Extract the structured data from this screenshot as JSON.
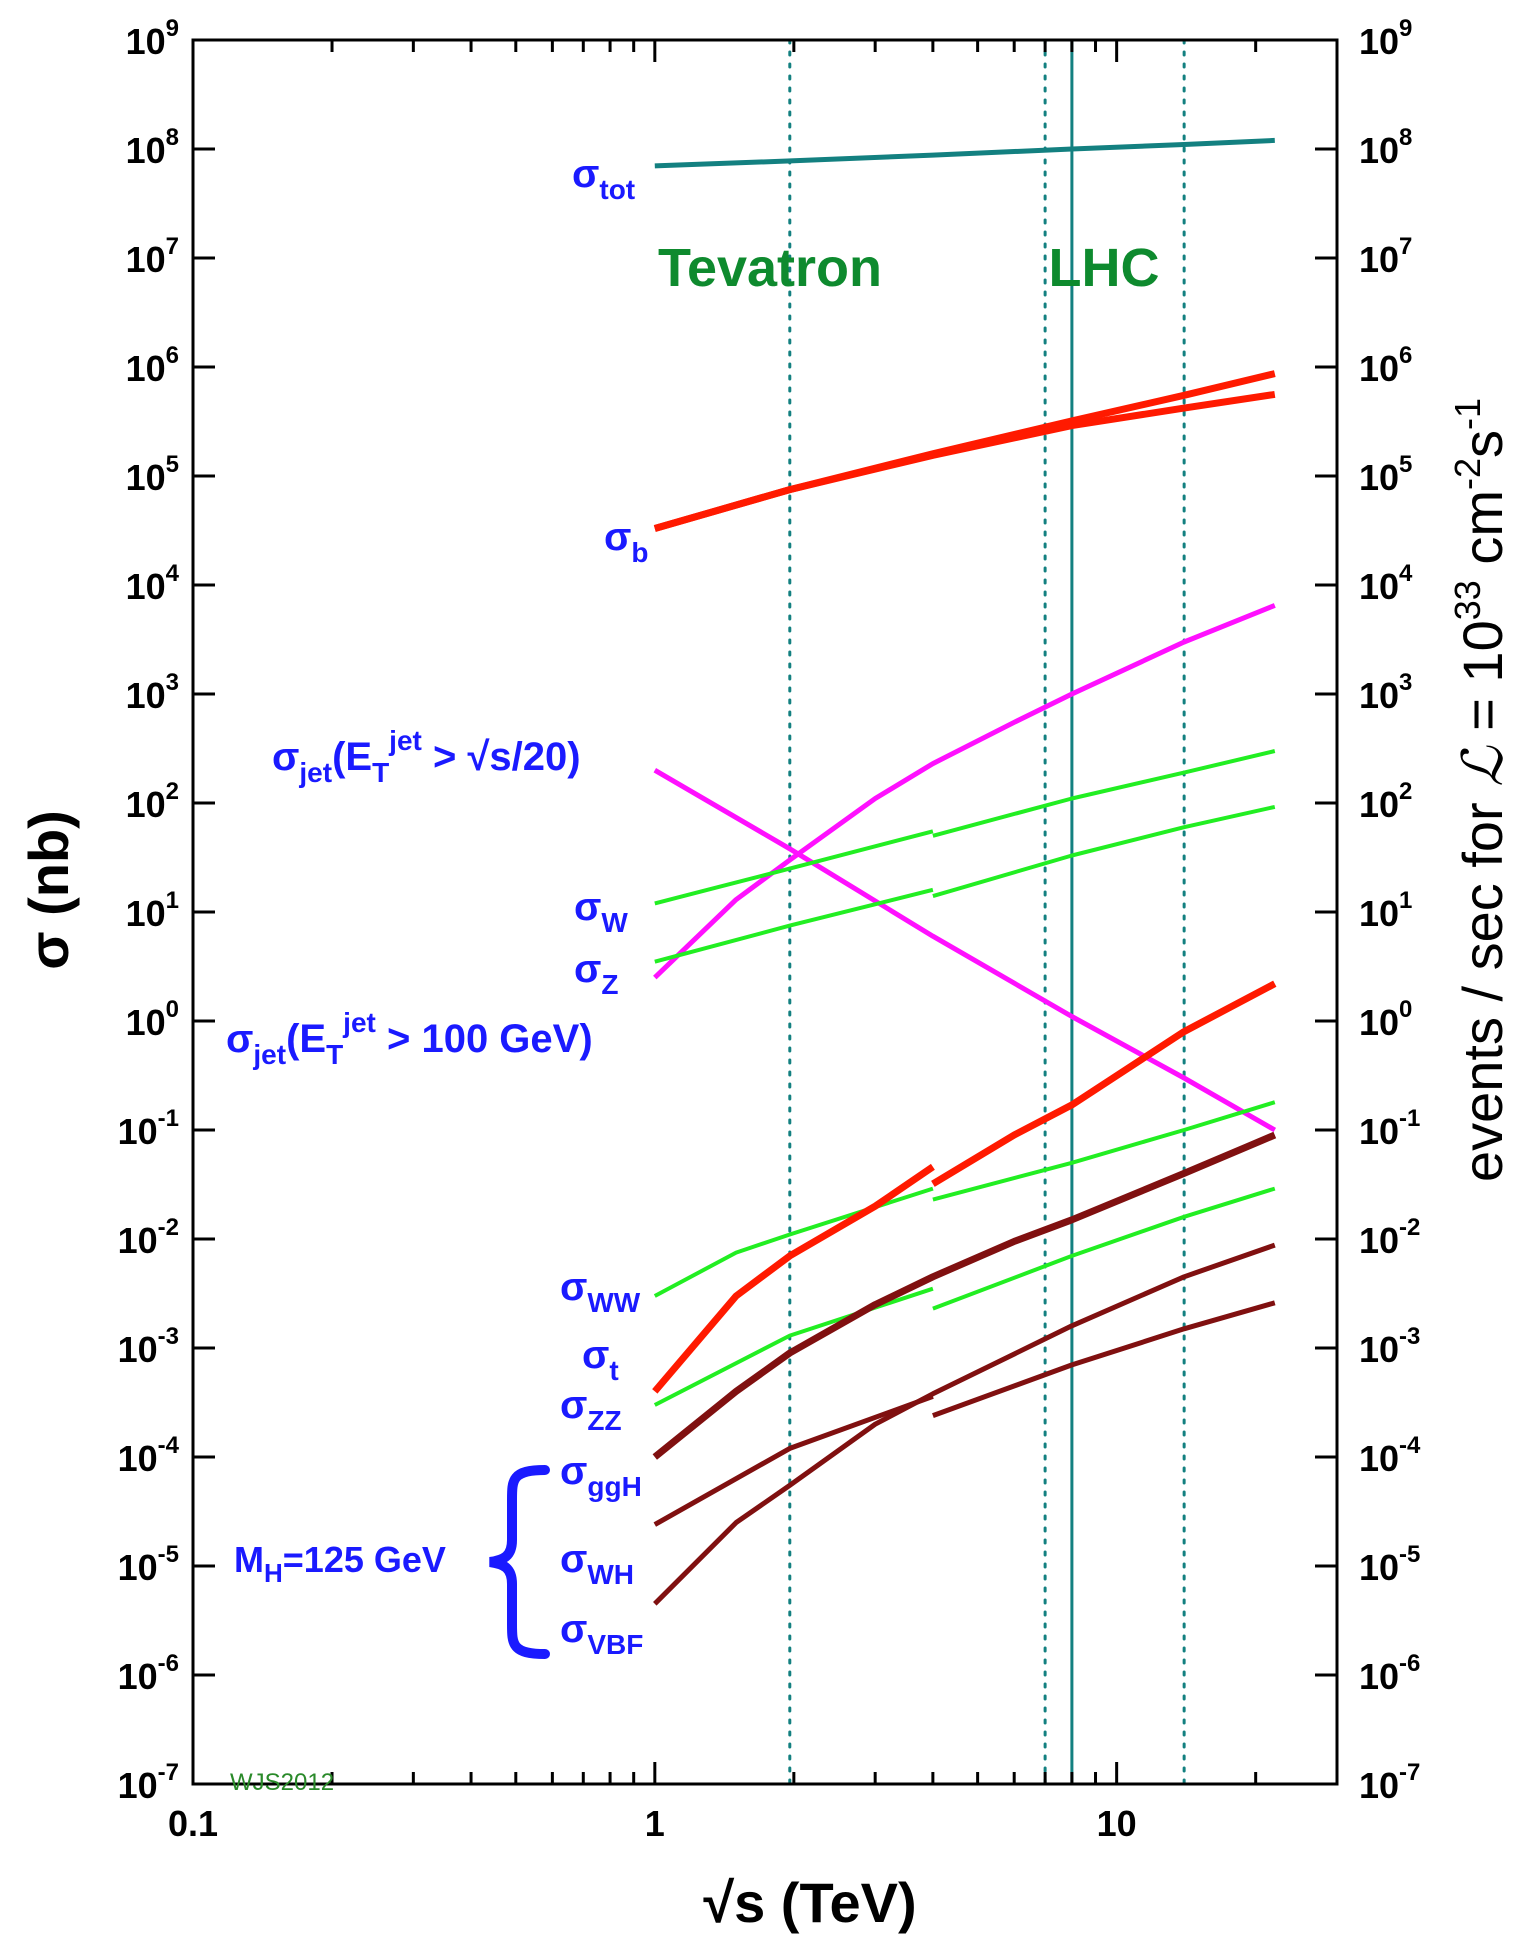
{
  "chart_data": {
    "type": "line",
    "x_scale": "log",
    "y_scale": "log",
    "xlim": [
      0.1,
      30
    ],
    "ylim": [
      1e-07,
      1000000000.0
    ],
    "x_ticks": [
      {
        "value": 0.1,
        "label": "0.1"
      },
      {
        "value": 1,
        "label": "1"
      },
      {
        "value": 10,
        "label": "10"
      }
    ],
    "y_ticks": [
      {
        "exp": -7,
        "base": "10",
        "sup": "-7"
      },
      {
        "exp": -6,
        "base": "10",
        "sup": "-6"
      },
      {
        "exp": -5,
        "base": "10",
        "sup": "-5"
      },
      {
        "exp": -4,
        "base": "10",
        "sup": "-4"
      },
      {
        "exp": -3,
        "base": "10",
        "sup": "-3"
      },
      {
        "exp": -2,
        "base": "10",
        "sup": "-2"
      },
      {
        "exp": -1,
        "base": "10",
        "sup": "-1"
      },
      {
        "exp": 0,
        "base": "10",
        "sup": "0"
      },
      {
        "exp": 1,
        "base": "10",
        "sup": "1"
      },
      {
        "exp": 2,
        "base": "10",
        "sup": "2"
      },
      {
        "exp": 3,
        "base": "10",
        "sup": "3"
      },
      {
        "exp": 4,
        "base": "10",
        "sup": "4"
      },
      {
        "exp": 5,
        "base": "10",
        "sup": "5"
      },
      {
        "exp": 6,
        "base": "10",
        "sup": "6"
      },
      {
        "exp": 7,
        "base": "10",
        "sup": "7"
      },
      {
        "exp": 8,
        "base": "10",
        "sup": "8"
      },
      {
        "exp": 9,
        "base": "10",
        "sup": "9"
      }
    ],
    "xlabel": "√s  (TeV)",
    "ylabel": "σ  (nb)",
    "ylabel_right": "events / sec for ℒ = 10³³ cm⁻²s⁻¹",
    "y2label": {
      "pre": "events / sec for ",
      "L": "ℒ",
      "eq": " = 10",
      "exp1": "33",
      "cm": " cm",
      "exp2": "-2",
      "s": "s",
      "exp3": "-1"
    },
    "regions": [
      {
        "label": "Tevatron",
        "lines": [
          {
            "x": 1.96,
            "style": "dotted"
          }
        ]
      },
      {
        "label": "LHC",
        "lines": [
          {
            "x": 7,
            "style": "dotted"
          },
          {
            "x": 8,
            "style": "solid"
          },
          {
            "x": 14,
            "style": "dotted"
          }
        ]
      }
    ],
    "series": [
      {
        "name": "σ_tot",
        "color": "#138080",
        "width": 5,
        "segments": [
          {
            "x": [
              1,
              2,
              4,
              8,
              14,
              22
            ],
            "y": [
              70000000.0,
              78000000.0,
              88000000.0,
              100000000.0,
              110000000.0,
              120000000.0
            ]
          }
        ]
      },
      {
        "name": "σ_b",
        "color": "#ff1a00",
        "width": 7,
        "segments": [
          {
            "x": [
              1,
              1.96,
              4,
              8,
              14,
              22
            ],
            "y": [
              33000.0,
              75000.0,
              160000.0,
              320000.0,
              550000.0,
              870000.0
            ]
          },
          {
            "x": [
              1,
              1.96,
              4,
              8,
              14,
              22
            ],
            "y": [
              33000.0,
              75000.0,
              155000.0,
              290000.0,
              420000.0,
              560000.0
            ]
          }
        ]
      },
      {
        "name": "σ_jet(E_T^jet > √s/20)",
        "color": "#ff10ff",
        "width": 5,
        "segments": [
          {
            "x": [
              1,
              1.96,
              4,
              8,
              14,
              22
            ],
            "y": [
              200,
              38,
              6,
              1.1,
              0.3,
              0.1
            ]
          }
        ]
      },
      {
        "name": "σ_jet(E_T^jet > 100 GeV)",
        "color": "#ff10ff",
        "width": 5,
        "segments": [
          {
            "x": [
              1,
              1.5,
              1.96,
              3,
              4,
              6,
              8,
              14,
              22
            ],
            "y": [
              2.5,
              13,
              30,
              110,
              230,
              550,
              1000,
              3000,
              6500
            ]
          }
        ]
      },
      {
        "name": "σ_W",
        "color": "#22ee22",
        "width": 4,
        "segments": [
          {
            "x": [
              1,
              1.96,
              4
            ],
            "y": [
              12,
              25,
              55
            ]
          },
          {
            "x": [
              4,
              8,
              14,
              22
            ],
            "y": [
              50,
              110,
              190,
              300
            ]
          }
        ]
      },
      {
        "name": "σ_Z",
        "color": "#22ee22",
        "width": 4,
        "segments": [
          {
            "x": [
              1,
              1.96,
              4
            ],
            "y": [
              3.5,
              7.5,
              16
            ]
          },
          {
            "x": [
              4,
              8,
              14,
              22
            ],
            "y": [
              14,
              33,
              60,
              92
            ]
          }
        ]
      },
      {
        "name": "σ_WW",
        "color": "#22ee22",
        "width": 4,
        "segments": [
          {
            "x": [
              1,
              1.5,
              1.96,
              4
            ],
            "y": [
              0.003,
              0.0075,
              0.011,
              0.029
            ]
          },
          {
            "x": [
              4,
              8,
              14,
              22
            ],
            "y": [
              0.023,
              0.05,
              0.1,
              0.18
            ]
          }
        ]
      },
      {
        "name": "σ_t",
        "color": "#ff1a00",
        "width": 7,
        "segments": [
          {
            "x": [
              1,
              1.5,
              1.96,
              3,
              4
            ],
            "y": [
              0.0004,
              0.003,
              0.007,
              0.02,
              0.046
            ]
          },
          {
            "x": [
              4,
              6,
              8,
              14,
              22
            ],
            "y": [
              0.032,
              0.09,
              0.17,
              0.8,
              2.2
            ]
          }
        ]
      },
      {
        "name": "σ_ZZ",
        "color": "#22ee22",
        "width": 4,
        "segments": [
          {
            "x": [
              1,
              1.96,
              4
            ],
            "y": [
              0.0003,
              0.0013,
              0.0035
            ]
          },
          {
            "x": [
              4,
              8,
              14,
              22
            ],
            "y": [
              0.0023,
              0.007,
              0.016,
              0.029
            ]
          }
        ]
      },
      {
        "name": "σ_ggH",
        "color": "#801010",
        "width": 7,
        "segments": [
          {
            "x": [
              1,
              1.5,
              1.96,
              3,
              4,
              6,
              8,
              14,
              22
            ],
            "y": [
              0.0001,
              0.0004,
              0.0009,
              0.0025,
              0.0045,
              0.0095,
              0.015,
              0.04,
              0.09
            ]
          }
        ]
      },
      {
        "name": "σ_WH",
        "color": "#801010",
        "width": 5,
        "segments": [
          {
            "x": [
              1,
              1.96,
              4
            ],
            "y": [
              2.4e-05,
              0.00012,
              0.00036
            ]
          },
          {
            "x": [
              4,
              8,
              14,
              22
            ],
            "y": [
              0.00024,
              0.0007,
              0.0015,
              0.0026
            ]
          }
        ]
      },
      {
        "name": "σ_VBF",
        "color": "#801010",
        "width": 5,
        "segments": [
          {
            "x": [
              1,
              1.5,
              1.96,
              3,
              4,
              8,
              14,
              22
            ],
            "y": [
              4.5e-06,
              2.5e-05,
              5.5e-05,
              0.0002,
              0.00038,
              0.0016,
              0.0045,
              0.0088
            ]
          }
        ]
      }
    ],
    "labels": {
      "tot": {
        "sigma": "σ",
        "sub": "tot"
      },
      "b": {
        "sigma": "σ",
        "sub": "b"
      },
      "jet1": {
        "sigma": "σ",
        "sub": "jet",
        "open": "(E",
        "subT": "T",
        "sup": "jet",
        "rest": " > √s/20)"
      },
      "jet2": {
        "sigma": "σ",
        "sub": "jet",
        "open": "(E",
        "subT": "T",
        "sup": "jet",
        "rest": " > 100 GeV)"
      },
      "W": {
        "sigma": "σ",
        "sub": "W"
      },
      "Z": {
        "sigma": "σ",
        "sub": "Z"
      },
      "WW": {
        "sigma": "σ",
        "sub": "WW"
      },
      "t": {
        "sigma": "σ",
        "sub": "t"
      },
      "ZZ": {
        "sigma": "σ",
        "sub": "ZZ"
      },
      "ggH": {
        "sigma": "σ",
        "sub": "ggH"
      },
      "WH": {
        "sigma": "σ",
        "sub": "WH"
      },
      "VBF": {
        "sigma": "σ",
        "sub": "VBF"
      }
    },
    "higgs_mass": {
      "pre": "M",
      "sub": "H",
      "rest": "=125 GeV"
    },
    "credit": "WJS2012"
  }
}
